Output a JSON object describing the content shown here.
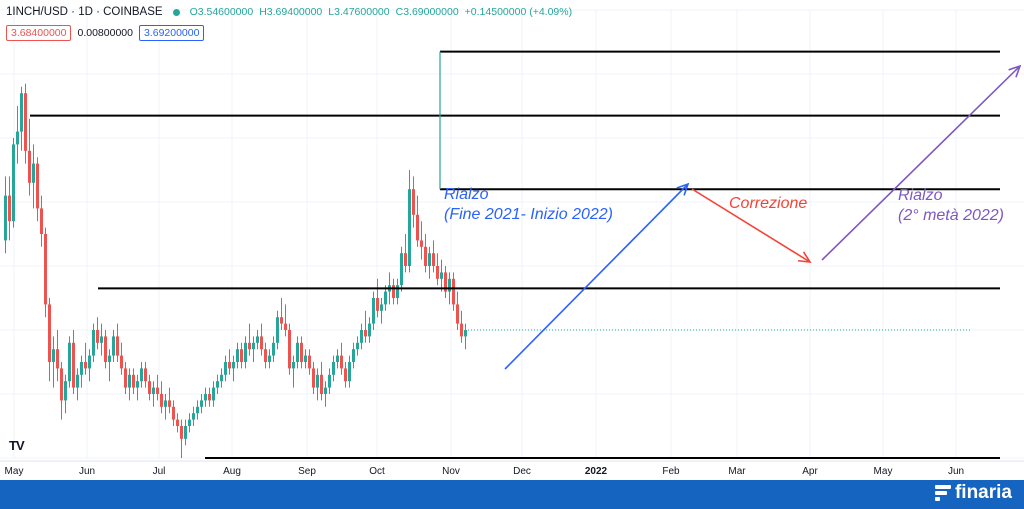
{
  "header": {
    "symbol": "1INCH/USD · 1D · COINBASE",
    "ohlc": {
      "o": "O3.54600000",
      "h": "H3.69400000",
      "l": "L3.47600000",
      "c": "C3.69000000",
      "chg": "+0.14500000 (+4.09%)"
    }
  },
  "prices": {
    "bid": "3.68400000",
    "spread": "0.00800000",
    "ask": "3.69200000"
  },
  "watermark": "TV",
  "brand": {
    "name": "finaria"
  },
  "colors": {
    "up": "#26a69a",
    "down": "#ef5350",
    "blue": "#2962ff",
    "red": "#f44336",
    "purple": "#7e57c2",
    "footer": "#1565c0"
  },
  "chart_data": {
    "type": "candlestick",
    "x_axis_ticks": [
      "May",
      "Jun",
      "Jul",
      "Aug",
      "Sep",
      "Oct",
      "Nov",
      "Dec",
      "2022",
      "Feb",
      "Mar",
      "Apr",
      "May",
      "Jun"
    ],
    "ylim": [
      2.0,
      9.0
    ],
    "ohlc_series": [
      [
        5.4,
        6.4,
        5.2,
        6.1
      ],
      [
        6.1,
        6.4,
        5.4,
        5.7
      ],
      [
        5.7,
        7.0,
        5.6,
        6.9
      ],
      [
        6.9,
        7.5,
        6.6,
        7.1
      ],
      [
        7.1,
        7.8,
        6.8,
        7.7
      ],
      [
        7.7,
        7.85,
        6.6,
        6.8
      ],
      [
        6.8,
        7.3,
        6.1,
        6.3
      ],
      [
        6.3,
        6.9,
        5.9,
        6.6
      ],
      [
        6.6,
        6.7,
        5.7,
        5.9
      ],
      [
        5.9,
        6.1,
        5.3,
        5.5
      ],
      [
        5.5,
        5.6,
        4.2,
        4.4
      ],
      [
        4.4,
        4.5,
        3.2,
        3.5
      ],
      [
        3.5,
        3.9,
        3.1,
        3.7
      ],
      [
        3.7,
        4.0,
        3.2,
        3.4
      ],
      [
        3.4,
        3.5,
        2.6,
        2.9
      ],
      [
        2.9,
        3.3,
        2.7,
        3.2
      ],
      [
        3.2,
        3.9,
        3.1,
        3.8
      ],
      [
        3.8,
        4.0,
        3.0,
        3.1
      ],
      [
        3.1,
        3.4,
        2.9,
        3.3
      ],
      [
        3.3,
        3.6,
        3.1,
        3.5
      ],
      [
        3.5,
        3.8,
        3.3,
        3.4
      ],
      [
        3.4,
        3.7,
        3.2,
        3.6
      ],
      [
        3.6,
        4.1,
        3.5,
        4.0
      ],
      [
        4.0,
        4.2,
        3.7,
        3.8
      ],
      [
        3.8,
        4.1,
        3.6,
        3.9
      ],
      [
        3.9,
        4.0,
        3.4,
        3.5
      ],
      [
        3.5,
        3.7,
        3.2,
        3.6
      ],
      [
        3.6,
        4.0,
        3.5,
        3.9
      ],
      [
        3.9,
        4.1,
        3.5,
        3.6
      ],
      [
        3.6,
        3.8,
        3.3,
        3.4
      ],
      [
        3.4,
        3.5,
        3.0,
        3.1
      ],
      [
        3.1,
        3.4,
        2.9,
        3.3
      ],
      [
        3.3,
        3.4,
        3.0,
        3.1
      ],
      [
        3.1,
        3.3,
        2.9,
        3.2
      ],
      [
        3.2,
        3.5,
        3.1,
        3.4
      ],
      [
        3.4,
        3.5,
        3.1,
        3.2
      ],
      [
        3.2,
        3.3,
        2.9,
        3.0
      ],
      [
        3.0,
        3.2,
        2.8,
        3.1
      ],
      [
        3.1,
        3.3,
        2.9,
        3.0
      ],
      [
        3.0,
        3.2,
        2.7,
        2.8
      ],
      [
        2.8,
        3.0,
        2.6,
        2.9
      ],
      [
        2.9,
        3.1,
        2.7,
        2.8
      ],
      [
        2.8,
        2.9,
        2.5,
        2.6
      ],
      [
        2.6,
        2.7,
        2.4,
        2.5
      ],
      [
        2.5,
        2.6,
        2.0,
        2.3
      ],
      [
        2.3,
        2.6,
        2.2,
        2.5
      ],
      [
        2.5,
        2.7,
        2.4,
        2.6
      ],
      [
        2.6,
        2.8,
        2.5,
        2.7
      ],
      [
        2.7,
        2.9,
        2.6,
        2.8
      ],
      [
        2.8,
        3.0,
        2.7,
        2.9
      ],
      [
        2.9,
        3.1,
        2.8,
        3.0
      ],
      [
        3.0,
        3.1,
        2.8,
        2.9
      ],
      [
        2.9,
        3.2,
        2.8,
        3.1
      ],
      [
        3.1,
        3.3,
        3.0,
        3.2
      ],
      [
        3.2,
        3.4,
        3.1,
        3.3
      ],
      [
        3.3,
        3.6,
        3.2,
        3.5
      ],
      [
        3.5,
        3.7,
        3.3,
        3.4
      ],
      [
        3.4,
        3.6,
        3.2,
        3.5
      ],
      [
        3.5,
        3.8,
        3.4,
        3.7
      ],
      [
        3.7,
        3.8,
        3.4,
        3.5
      ],
      [
        3.5,
        3.9,
        3.4,
        3.8
      ],
      [
        3.8,
        4.1,
        3.6,
        3.7
      ],
      [
        3.7,
        3.9,
        3.5,
        3.8
      ],
      [
        3.8,
        4.0,
        3.7,
        3.9
      ],
      [
        3.9,
        4.1,
        3.6,
        3.7
      ],
      [
        3.7,
        3.8,
        3.4,
        3.5
      ],
      [
        3.5,
        3.7,
        3.4,
        3.6
      ],
      [
        3.6,
        3.9,
        3.5,
        3.8
      ],
      [
        3.8,
        4.3,
        3.7,
        4.2
      ],
      [
        4.2,
        4.5,
        4.0,
        4.1
      ],
      [
        4.1,
        4.4,
        3.9,
        4.0
      ],
      [
        4.0,
        4.1,
        3.3,
        3.4
      ],
      [
        3.4,
        3.6,
        3.1,
        3.5
      ],
      [
        3.5,
        3.9,
        3.4,
        3.8
      ],
      [
        3.8,
        3.9,
        3.4,
        3.5
      ],
      [
        3.5,
        3.7,
        3.4,
        3.6
      ],
      [
        3.6,
        3.7,
        3.3,
        3.4
      ],
      [
        3.4,
        3.5,
        3.0,
        3.1
      ],
      [
        3.1,
        3.4,
        2.9,
        3.3
      ],
      [
        3.3,
        3.5,
        2.9,
        3.0
      ],
      [
        3.0,
        3.2,
        2.8,
        3.1
      ],
      [
        3.1,
        3.4,
        3.0,
        3.3
      ],
      [
        3.3,
        3.6,
        3.2,
        3.5
      ],
      [
        3.5,
        3.7,
        3.4,
        3.6
      ],
      [
        3.6,
        3.8,
        3.3,
        3.4
      ],
      [
        3.4,
        3.5,
        3.1,
        3.2
      ],
      [
        3.2,
        3.6,
        3.1,
        3.5
      ],
      [
        3.5,
        3.8,
        3.4,
        3.7
      ],
      [
        3.7,
        3.9,
        3.6,
        3.8
      ],
      [
        3.8,
        4.1,
        3.7,
        4.0
      ],
      [
        4.0,
        4.3,
        3.8,
        3.9
      ],
      [
        3.9,
        4.2,
        3.8,
        4.1
      ],
      [
        4.1,
        4.6,
        4.0,
        4.5
      ],
      [
        4.5,
        4.8,
        4.2,
        4.3
      ],
      [
        4.3,
        4.5,
        4.1,
        4.4
      ],
      [
        4.4,
        4.7,
        4.3,
        4.6
      ],
      [
        4.6,
        4.9,
        4.4,
        4.7
      ],
      [
        4.7,
        4.8,
        4.4,
        4.5
      ],
      [
        4.5,
        4.8,
        4.4,
        4.7
      ],
      [
        4.7,
        5.3,
        4.6,
        5.2
      ],
      [
        5.2,
        5.5,
        4.9,
        5.0
      ],
      [
        5.0,
        6.5,
        4.9,
        6.2
      ],
      [
        6.2,
        6.4,
        5.6,
        5.8
      ],
      [
        5.8,
        6.1,
        5.3,
        5.4
      ],
      [
        5.4,
        5.7,
        5.1,
        5.3
      ],
      [
        5.3,
        5.5,
        4.9,
        5.0
      ],
      [
        5.0,
        5.3,
        4.8,
        5.2
      ],
      [
        5.2,
        5.4,
        4.9,
        5.0
      ],
      [
        5.0,
        5.2,
        4.7,
        4.8
      ],
      [
        4.8,
        5.1,
        4.6,
        4.9
      ],
      [
        4.9,
        5.0,
        4.5,
        4.6
      ],
      [
        4.6,
        4.9,
        4.4,
        4.8
      ],
      [
        4.8,
        4.9,
        4.3,
        4.4
      ],
      [
        4.4,
        4.6,
        4.0,
        4.1
      ],
      [
        4.1,
        4.3,
        3.8,
        3.9
      ],
      [
        3.9,
        4.1,
        3.7,
        4.0
      ]
    ],
    "horizontal_levels": [
      {
        "price": 2.0,
        "from_date": "Jul",
        "to_date": "Jun"
      },
      {
        "price": 4.65,
        "from_date": "Jun",
        "to_date": "Jun"
      },
      {
        "price": 6.2,
        "from_date": "Nov",
        "to_date": "Jun"
      },
      {
        "price": 7.35,
        "from_date": "May",
        "to_date": "Jun"
      },
      {
        "price": 8.35,
        "from_date": "Nov",
        "to_date": "Jun"
      }
    ],
    "annotations": [
      {
        "text_lines": [
          "Rialzo",
          "(Fine 2021- Inizio 2022)"
        ],
        "color": "#2962ff"
      },
      {
        "text_lines": [
          "Correzione"
        ],
        "color": "#f44336"
      },
      {
        "text_lines": [
          "Rialzo",
          "(2° metà 2022)"
        ],
        "color": "#7e57c2"
      }
    ],
    "arrows": [
      {
        "from_price": 3.9,
        "to_price": 7.35,
        "color": "#2962ff"
      },
      {
        "from_price": 7.35,
        "to_price": 6.2,
        "color": "#f44336"
      },
      {
        "from_price": 6.2,
        "to_price": 9.0,
        "color": "#7e57c2"
      }
    ],
    "grid": true
  }
}
